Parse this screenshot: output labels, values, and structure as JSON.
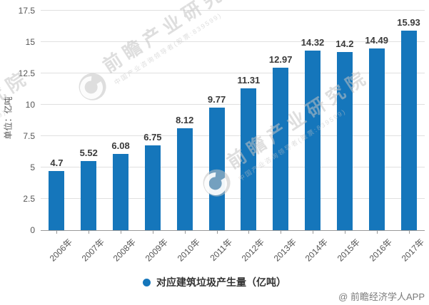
{
  "chart_data": {
    "type": "bar",
    "title": "",
    "categories": [
      "2006年",
      "2007年",
      "2008年",
      "2009年",
      "2010年",
      "2011年",
      "2012年",
      "2013年",
      "2014年",
      "2015年",
      "2016年",
      "2017年"
    ],
    "series": [
      {
        "name": "对应建筑垃圾产生量（亿吨）",
        "values": [
          4.7,
          5.52,
          6.08,
          6.75,
          8.12,
          9.77,
          11.31,
          12.97,
          14.32,
          14.2,
          14.49,
          15.93
        ]
      }
    ],
    "value_labels": [
      "4.7",
      "5.52",
      "6.08",
      "6.75",
      "8.12",
      "9.77",
      "11.31",
      "12.97",
      "14.32",
      "14.2",
      "14.49",
      "15.93"
    ],
    "xlabel": "",
    "ylabel": "单位：亿吨",
    "ylim": [
      0,
      17.5
    ],
    "yticks": [
      0,
      2.5,
      5,
      7.5,
      10,
      12.5,
      15,
      17.5
    ],
    "ytick_labels": [
      "0",
      "2.5",
      "5",
      "7.5",
      "10",
      "12.5",
      "15",
      "17.5"
    ],
    "grid": true,
    "legend_position": "bottom",
    "bar_color": "#1576bb"
  },
  "y_axis": {
    "unit_label": "单位：亿吨"
  },
  "legend": {
    "label": "对应建筑垃圾产生量（亿吨）"
  },
  "footer": {
    "attribution": "@ 前瞻经济学人APP"
  },
  "watermark": {
    "brand_large": "前瞻产业研究院",
    "brand_small": "中国产业咨询领导者(股票:839599)"
  },
  "colors": {
    "bar_blue": "#1576bb",
    "gridline": "#e0e0e0",
    "axis_line": "#999999",
    "label_dark": "#3a3a3a",
    "tick_text": "#555555",
    "watermark_gray": "#c3c3c3",
    "attribution_gray": "#7a7a7a"
  }
}
